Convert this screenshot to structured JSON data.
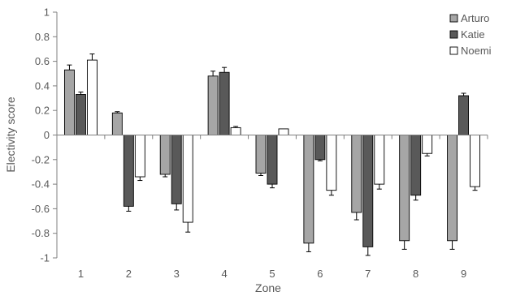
{
  "chart_data": {
    "type": "bar",
    "title": "",
    "xlabel": "Zone",
    "ylabel": "Electivity score",
    "categories": [
      "1",
      "2",
      "3",
      "4",
      "5",
      "6",
      "7",
      "8",
      "9"
    ],
    "ylim": [
      -1,
      1
    ],
    "yticks": [
      1,
      0.8,
      0.6,
      0.4,
      0.2,
      0,
      -0.2,
      -0.4,
      -0.6,
      -0.8,
      -1
    ],
    "ytick_labels": [
      "1",
      "0.8",
      "0.6",
      "0.4",
      "0.2",
      "0",
      "-0.2",
      "-0.4",
      "-0.6",
      "-0.8",
      "-1"
    ],
    "grid": false,
    "legend_position": "top-right",
    "error_bars": true,
    "series": [
      {
        "name": "Arturo",
        "color": "#a6a6a6",
        "values": [
          0.53,
          0.18,
          -0.32,
          0.48,
          -0.31,
          -0.88,
          -0.63,
          -0.86,
          -0.86
        ],
        "errors": [
          0.04,
          0.01,
          0.02,
          0.04,
          0.02,
          0.07,
          0.06,
          0.07,
          0.07
        ]
      },
      {
        "name": "Katie",
        "color": "#595959",
        "values": [
          0.33,
          -0.58,
          -0.56,
          0.51,
          -0.4,
          -0.2,
          -0.91,
          -0.49,
          0.32
        ],
        "errors": [
          0.02,
          0.04,
          0.05,
          0.04,
          0.03,
          0.01,
          0.07,
          0.04,
          0.02
        ]
      },
      {
        "name": "Noemi",
        "color": "#ffffff",
        "values": [
          0.61,
          -0.34,
          -0.71,
          0.06,
          0.05,
          -0.45,
          -0.4,
          -0.15,
          -0.42
        ],
        "errors": [
          0.05,
          0.03,
          0.08,
          0.01,
          0.0,
          0.04,
          0.04,
          0.02,
          0.03
        ]
      }
    ]
  }
}
